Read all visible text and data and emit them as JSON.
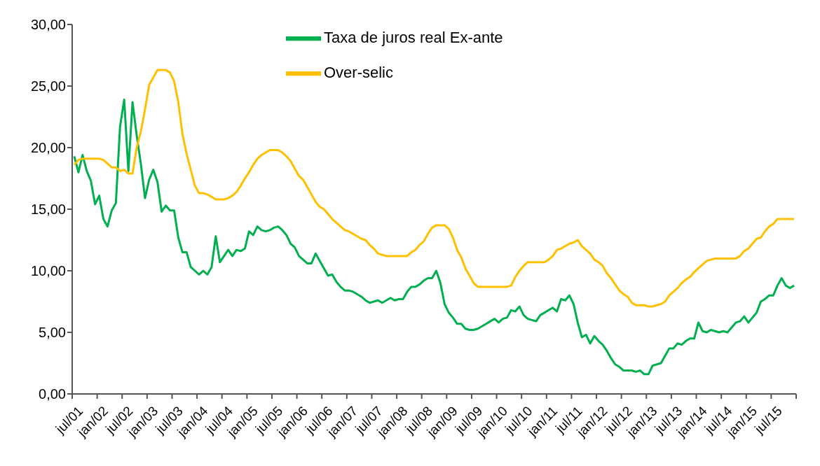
{
  "chart_data": {
    "type": "line",
    "x": [
      "2001-07",
      "2001-08",
      "2001-09",
      "2001-10",
      "2001-11",
      "2001-12",
      "2002-01",
      "2002-02",
      "2002-03",
      "2002-04",
      "2002-05",
      "2002-06",
      "2002-07",
      "2002-08",
      "2002-09",
      "2002-10",
      "2002-11",
      "2002-12",
      "2003-01",
      "2003-02",
      "2003-03",
      "2003-04",
      "2003-05",
      "2003-06",
      "2003-07",
      "2003-08",
      "2003-09",
      "2003-10",
      "2003-11",
      "2003-12",
      "2004-01",
      "2004-02",
      "2004-03",
      "2004-04",
      "2004-05",
      "2004-06",
      "2004-07",
      "2004-08",
      "2004-09",
      "2004-10",
      "2004-11",
      "2004-12",
      "2005-01",
      "2005-02",
      "2005-03",
      "2005-04",
      "2005-05",
      "2005-06",
      "2005-07",
      "2005-08",
      "2005-09",
      "2005-10",
      "2005-11",
      "2005-12",
      "2006-01",
      "2006-02",
      "2006-03",
      "2006-04",
      "2006-05",
      "2006-06",
      "2006-07",
      "2006-08",
      "2006-09",
      "2006-10",
      "2006-11",
      "2006-12",
      "2007-01",
      "2007-02",
      "2007-03",
      "2007-04",
      "2007-05",
      "2007-06",
      "2007-07",
      "2007-08",
      "2007-09",
      "2007-10",
      "2007-11",
      "2007-12",
      "2008-01",
      "2008-02",
      "2008-03",
      "2008-04",
      "2008-05",
      "2008-06",
      "2008-07",
      "2008-08",
      "2008-09",
      "2008-10",
      "2008-11",
      "2008-12",
      "2009-01",
      "2009-02",
      "2009-03",
      "2009-04",
      "2009-05",
      "2009-06",
      "2009-07",
      "2009-08",
      "2009-09",
      "2009-10",
      "2009-11",
      "2009-12",
      "2010-01",
      "2010-02",
      "2010-03",
      "2010-04",
      "2010-05",
      "2010-06",
      "2010-07",
      "2010-08",
      "2010-09",
      "2010-10",
      "2010-11",
      "2010-12",
      "2011-01",
      "2011-02",
      "2011-03",
      "2011-04",
      "2011-05",
      "2011-06",
      "2011-07",
      "2011-08",
      "2011-09",
      "2011-10",
      "2011-11",
      "2011-12",
      "2012-01",
      "2012-02",
      "2012-03",
      "2012-04",
      "2012-05",
      "2012-06",
      "2012-07",
      "2012-08",
      "2012-09",
      "2012-10",
      "2012-11",
      "2012-12",
      "2013-01",
      "2013-02",
      "2013-03",
      "2013-04",
      "2013-05",
      "2013-06",
      "2013-07",
      "2013-08",
      "2013-09",
      "2013-10",
      "2013-11",
      "2013-12",
      "2014-01",
      "2014-02",
      "2014-03",
      "2014-04",
      "2014-05",
      "2014-06",
      "2014-07",
      "2014-08",
      "2014-09",
      "2014-10",
      "2014-11",
      "2014-12",
      "2015-01",
      "2015-02",
      "2015-03",
      "2015-04",
      "2015-05",
      "2015-06",
      "2015-07",
      "2015-08",
      "2015-09",
      "2015-10",
      "2015-11",
      "2015-12"
    ],
    "xlim": [
      "2001-06-16",
      "2015-12-16"
    ],
    "xticks": [
      {
        "value": "2001-07",
        "label": "jul/01"
      },
      {
        "value": "2002-01",
        "label": "jan/02"
      },
      {
        "value": "2002-07",
        "label": "jul/02"
      },
      {
        "value": "2003-01",
        "label": "jan/03"
      },
      {
        "value": "2003-07",
        "label": "jul/03"
      },
      {
        "value": "2004-01",
        "label": "jan/04"
      },
      {
        "value": "2004-07",
        "label": "jul/04"
      },
      {
        "value": "2005-01",
        "label": "jan/05"
      },
      {
        "value": "2005-07",
        "label": "jul/05"
      },
      {
        "value": "2006-01",
        "label": "jan/06"
      },
      {
        "value": "2006-07",
        "label": "jul/06"
      },
      {
        "value": "2007-01",
        "label": "jan/07"
      },
      {
        "value": "2007-07",
        "label": "jul/07"
      },
      {
        "value": "2008-01",
        "label": "jan/08"
      },
      {
        "value": "2008-07",
        "label": "jul/08"
      },
      {
        "value": "2009-01",
        "label": "jan/09"
      },
      {
        "value": "2009-07",
        "label": "jul/09"
      },
      {
        "value": "2010-01",
        "label": "jan/10"
      },
      {
        "value": "2010-07",
        "label": "jul/10"
      },
      {
        "value": "2011-01",
        "label": "jan/11"
      },
      {
        "value": "2011-07",
        "label": "jul/11"
      },
      {
        "value": "2012-01",
        "label": "jan/12"
      },
      {
        "value": "2012-07",
        "label": "jul/12"
      },
      {
        "value": "2013-01",
        "label": "jan/13"
      },
      {
        "value": "2013-07",
        "label": "jul/13"
      },
      {
        "value": "2014-01",
        "label": "jan/14"
      },
      {
        "value": "2014-07",
        "label": "jul/14"
      },
      {
        "value": "2015-01",
        "label": "jan/15"
      },
      {
        "value": "2015-07",
        "label": "jul/15"
      }
    ],
    "series": [
      {
        "name": "Taxa de juros real Ex-ante",
        "color": "#00b050",
        "values": [
          19.3,
          18.0,
          19.4,
          18.1,
          17.3,
          15.4,
          16.1,
          14.2,
          13.6,
          14.9,
          15.5,
          21.7,
          23.9,
          18.1,
          23.7,
          21.0,
          18.7,
          15.9,
          17.4,
          18.2,
          17.2,
          14.8,
          15.3,
          14.9,
          14.9,
          12.7,
          11.5,
          11.5,
          10.3,
          10.0,
          9.7,
          10.0,
          9.7,
          10.3,
          12.8,
          10.7,
          11.2,
          11.7,
          11.2,
          11.7,
          11.6,
          11.8,
          13.2,
          12.9,
          13.6,
          13.3,
          13.2,
          13.3,
          13.5,
          13.6,
          13.3,
          12.9,
          12.2,
          11.9,
          11.2,
          10.9,
          10.6,
          10.6,
          11.4,
          10.8,
          10.2,
          9.6,
          9.7,
          9.1,
          8.7,
          8.4,
          8.4,
          8.3,
          8.1,
          7.9,
          7.6,
          7.4,
          7.5,
          7.6,
          7.4,
          7.6,
          7.8,
          7.6,
          7.7,
          7.7,
          8.3,
          8.7,
          8.7,
          8.9,
          9.2,
          9.4,
          9.4,
          10.0,
          9.0,
          7.3,
          6.6,
          6.2,
          5.7,
          5.7,
          5.3,
          5.2,
          5.2,
          5.3,
          5.5,
          5.7,
          5.9,
          6.1,
          5.8,
          6.1,
          6.2,
          6.8,
          6.7,
          7.1,
          6.4,
          6.1,
          6.0,
          5.9,
          6.4,
          6.6,
          6.8,
          7.0,
          6.7,
          7.7,
          7.6,
          8.0,
          7.3,
          5.8,
          4.6,
          4.8,
          4.1,
          4.7,
          4.3,
          4.0,
          3.5,
          2.9,
          2.4,
          2.2,
          1.9,
          1.9,
          1.9,
          1.8,
          1.9,
          1.6,
          1.6,
          2.3,
          2.4,
          2.5,
          3.1,
          3.7,
          3.7,
          4.1,
          4.0,
          4.3,
          4.5,
          4.5,
          5.8,
          5.1,
          5.0,
          5.2,
          5.1,
          5.0,
          5.1,
          5.0,
          5.4,
          5.8,
          5.9,
          6.3,
          5.8,
          6.2,
          6.6,
          7.5,
          7.7,
          8.0,
          8.0,
          8.8,
          9.4,
          8.8,
          8.6,
          8.8
        ]
      },
      {
        "name": "Over-selic",
        "color": "#ffc000",
        "values": [
          18.6,
          19.0,
          19.1,
          19.1,
          19.1,
          19.1,
          19.1,
          19.0,
          18.7,
          18.4,
          18.4,
          18.1,
          18.2,
          17.9,
          17.9,
          20.0,
          21.3,
          23.1,
          25.1,
          25.7,
          26.3,
          26.3,
          26.3,
          26.1,
          25.4,
          23.7,
          21.1,
          19.5,
          18.2,
          16.9,
          16.3,
          16.3,
          16.2,
          16.0,
          15.8,
          15.8,
          15.8,
          15.9,
          16.1,
          16.4,
          16.9,
          17.5,
          18.0,
          18.6,
          19.1,
          19.4,
          19.6,
          19.8,
          19.8,
          19.8,
          19.6,
          19.3,
          18.9,
          18.3,
          17.7,
          17.4,
          16.8,
          16.2,
          15.6,
          15.2,
          15.0,
          14.6,
          14.2,
          13.9,
          13.6,
          13.3,
          13.2,
          13.0,
          12.8,
          12.6,
          12.5,
          12.1,
          11.8,
          11.4,
          11.3,
          11.2,
          11.2,
          11.2,
          11.2,
          11.2,
          11.2,
          11.5,
          11.7,
          12.1,
          12.4,
          13.0,
          13.5,
          13.7,
          13.7,
          13.7,
          13.4,
          12.7,
          11.7,
          11.1,
          10.2,
          9.6,
          9.0,
          8.7,
          8.7,
          8.7,
          8.7,
          8.7,
          8.7,
          8.7,
          8.7,
          8.8,
          9.5,
          10.0,
          10.4,
          10.7,
          10.7,
          10.7,
          10.7,
          10.7,
          10.9,
          11.2,
          11.7,
          11.8,
          12.0,
          12.2,
          12.3,
          12.5,
          12.0,
          11.7,
          11.4,
          10.9,
          10.7,
          10.4,
          9.8,
          9.4,
          8.9,
          8.4,
          8.1,
          7.9,
          7.4,
          7.2,
          7.2,
          7.2,
          7.1,
          7.1,
          7.2,
          7.3,
          7.5,
          8.0,
          8.3,
          8.6,
          9.0,
          9.3,
          9.5,
          9.9,
          10.2,
          10.5,
          10.8,
          10.9,
          11.0,
          11.0,
          11.0,
          11.0,
          11.0,
          11.0,
          11.2,
          11.6,
          11.8,
          12.2,
          12.6,
          12.7,
          13.2,
          13.6,
          13.8,
          14.2,
          14.2,
          14.2,
          14.2,
          14.2
        ]
      }
    ],
    "ylim": [
      0,
      30
    ],
    "yticks": [
      {
        "value": 0,
        "label": "0,00"
      },
      {
        "value": 5,
        "label": "5,00"
      },
      {
        "value": 10,
        "label": "10,00"
      },
      {
        "value": 15,
        "label": "15,00"
      },
      {
        "value": 20,
        "label": "20,00"
      },
      {
        "value": 25,
        "label": "25,00"
      },
      {
        "value": 30,
        "label": "30,00"
      }
    ],
    "legend": "top",
    "grid": false,
    "marker": "none",
    "line_style": "solid"
  }
}
